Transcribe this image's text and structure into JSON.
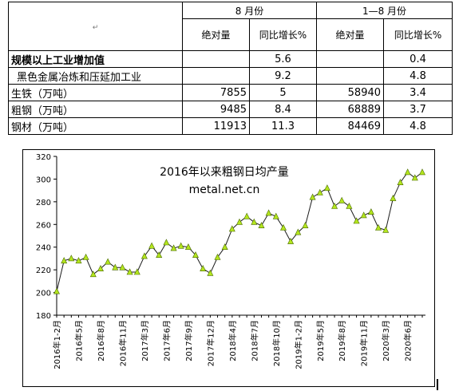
{
  "table": {
    "header": {
      "corner_mark": "↵",
      "period1": "8 月份",
      "period2": "1—8 月份",
      "sub_abs": "绝对量",
      "sub_yoy": "同比增长%"
    },
    "rows": [
      {
        "label": "规模以上工业增加值",
        "p1_abs": "",
        "p1_yoy": "5.6",
        "p2_abs": "",
        "p2_yoy": "0.4"
      },
      {
        "label": "黑色金属冶炼和压延加工业",
        "p1_abs": "",
        "p1_yoy": "9.2",
        "p2_abs": "",
        "p2_yoy": "4.8"
      },
      {
        "label": "生铁（万吨）",
        "p1_abs": "7855",
        "p1_yoy": "5",
        "p2_abs": "58940",
        "p2_yoy": "3.4"
      },
      {
        "label": "粗钢（万吨）",
        "p1_abs": "9485",
        "p1_yoy": "8.4",
        "p2_abs": "68889",
        "p2_yoy": "3.7"
      },
      {
        "label": "钢材（万吨）",
        "p1_abs": "11913",
        "p1_yoy": "11.3",
        "p2_abs": "84469",
        "p2_yoy": "4.8"
      }
    ]
  },
  "chart_data": {
    "type": "line",
    "title": "2016年以来粗钢日均产量",
    "subtitle": "metal.net.cn",
    "xlabel": "",
    "ylabel": "",
    "ylim": [
      180,
      320
    ],
    "yticks": [
      180,
      200,
      220,
      240,
      260,
      280,
      300,
      320
    ],
    "grid": false,
    "legend": "none",
    "line_color": "#1a1a1a",
    "marker_color": "#b4e61e",
    "xtick_labels": [
      "2016年1-2月",
      "2016年5月",
      "2016年8月",
      "2016年11月",
      "2017年3月",
      "2017年6月",
      "2017年9月",
      "2017年12月",
      "2018年4月",
      "2018年7月",
      "2018年10月",
      "2019年1-2月",
      "2019年5月",
      "2019年8月",
      "2019年11月",
      "2020年3月",
      "2020年6月"
    ],
    "xtick_positions": [
      0,
      3,
      6,
      9,
      12,
      15,
      18,
      21,
      24,
      27,
      30,
      33,
      36,
      39,
      42,
      45,
      48
    ],
    "series": [
      {
        "name": "",
        "values": [
          201,
          228,
          230,
          228,
          231,
          216,
          221,
          227,
          222,
          222,
          218,
          218,
          232,
          241,
          233,
          244,
          239,
          241,
          240,
          233,
          221,
          217,
          231,
          240,
          256,
          262,
          267,
          262,
          259,
          270,
          267,
          257,
          245,
          253,
          259,
          284,
          288,
          292,
          276,
          281,
          276,
          263,
          268,
          271,
          257,
          255,
          283,
          297,
          306,
          301,
          306
        ]
      }
    ]
  }
}
